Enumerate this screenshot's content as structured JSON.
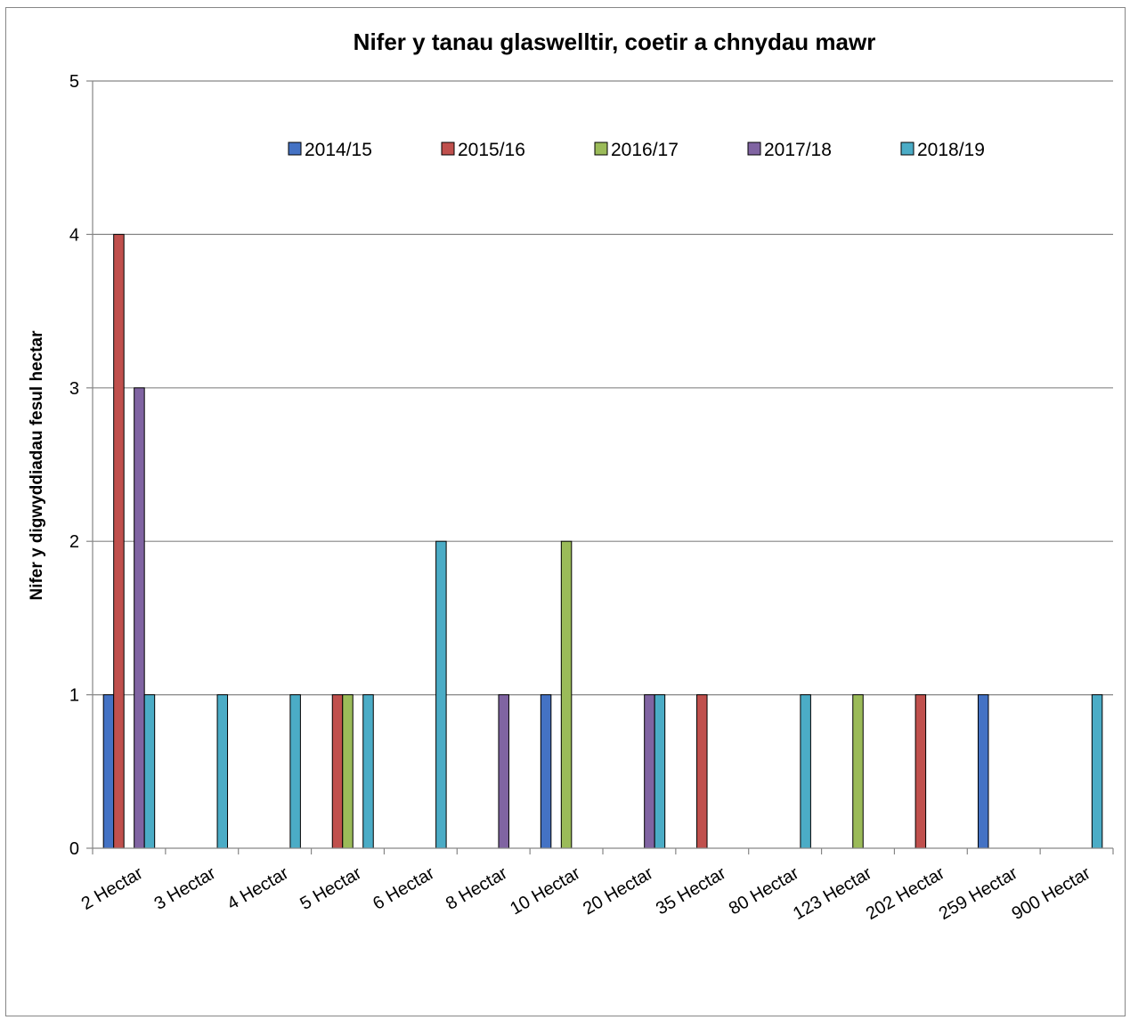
{
  "chart_data": {
    "type": "bar",
    "title": "Nifer y tanau glaswelltir, coetir a chnydau mawr",
    "xlabel": "",
    "ylabel": "Nifer y digwyddiadau fesul hectar",
    "ylim": [
      0,
      5
    ],
    "yticks": [
      0,
      1,
      2,
      3,
      4,
      5
    ],
    "grid": true,
    "legend_position": "top",
    "categories": [
      "2 Hectar",
      "3 Hectar",
      "4 Hectar",
      "5 Hectar",
      "6 Hectar",
      "8 Hectar",
      "10 Hectar",
      "20 Hectar",
      "35 Hectar",
      "80 Hectar",
      "123 Hectar",
      "202 Hectar",
      "259 Hectar",
      "900 Hectar"
    ],
    "series": [
      {
        "name": "2014/15",
        "color": "#4472C4",
        "values": [
          1,
          0,
          0,
          0,
          0,
          0,
          1,
          0,
          0,
          0,
          0,
          0,
          1,
          0
        ]
      },
      {
        "name": "2015/16",
        "color": "#C0504D",
        "values": [
          4,
          0,
          0,
          1,
          0,
          0,
          0,
          0,
          1,
          0,
          0,
          1,
          0,
          0
        ]
      },
      {
        "name": "2016/17",
        "color": "#9BBB59",
        "values": [
          0,
          0,
          0,
          1,
          0,
          0,
          2,
          0,
          0,
          0,
          1,
          0,
          0,
          0
        ]
      },
      {
        "name": "2017/18",
        "color": "#8064A2",
        "values": [
          3,
          0,
          0,
          0,
          0,
          1,
          0,
          1,
          0,
          0,
          0,
          0,
          0,
          0
        ]
      },
      {
        "name": "2018/19",
        "color": "#4BACC6",
        "values": [
          1,
          1,
          1,
          1,
          2,
          0,
          0,
          1,
          0,
          1,
          0,
          0,
          0,
          1
        ]
      }
    ]
  }
}
